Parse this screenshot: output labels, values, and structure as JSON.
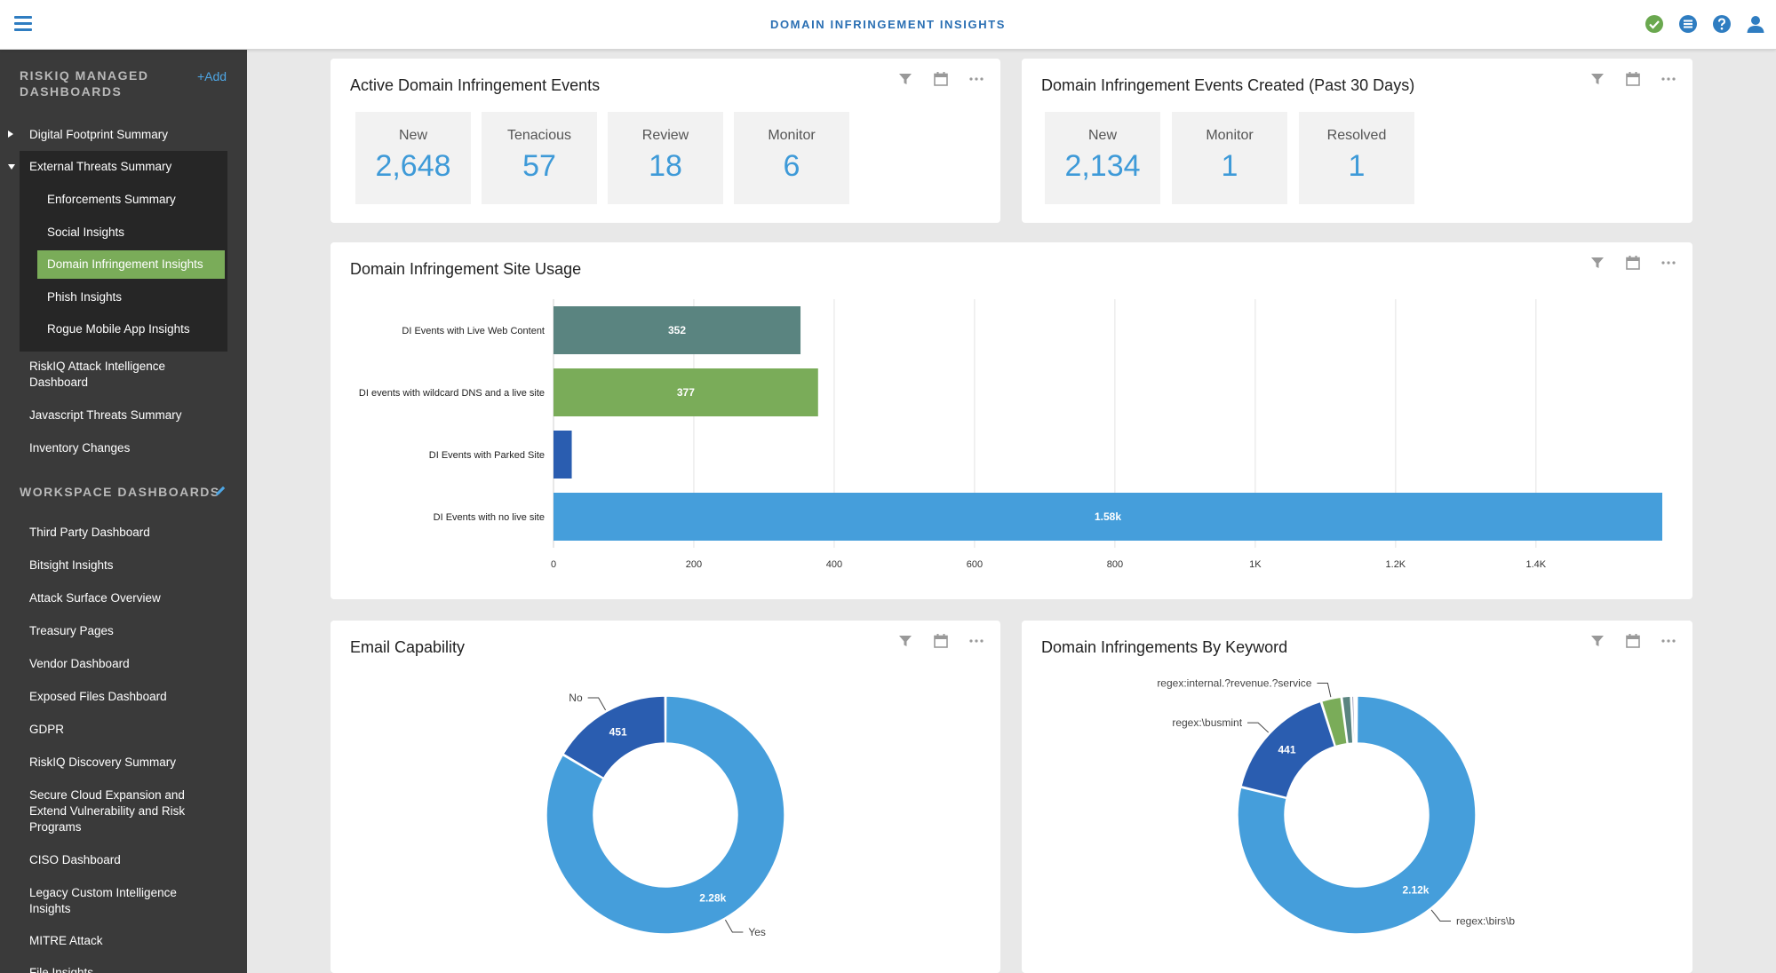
{
  "app": {
    "title": "DOMAIN INFRINGEMENT INSIGHTS"
  },
  "top_icons": [
    "check-circle-icon",
    "list-icon",
    "help-icon",
    "user-icon"
  ],
  "sidebar": {
    "managed_title": "RISKIQ MANAGED DASHBOARDS",
    "add_label": "+Add",
    "workspace_title": "WORKSPACE DASHBOARDS",
    "managed_items": [
      {
        "label": "Digital Footprint Summary"
      },
      {
        "label": "External Threats Summary"
      },
      {
        "label": "Enforcements Summary"
      },
      {
        "label": "Social Insights"
      },
      {
        "label": "Domain Infringement Insights"
      },
      {
        "label": "Phish Insights"
      },
      {
        "label": "Rogue Mobile App Insights"
      },
      {
        "label": "RiskIQ Attack Intelligence Dashboard"
      },
      {
        "label": "Javascript Threats Summary"
      },
      {
        "label": "Inventory Changes"
      }
    ],
    "workspace_items": [
      {
        "label": "Third Party Dashboard"
      },
      {
        "label": "Bitsight Insights"
      },
      {
        "label": "Attack Surface Overview"
      },
      {
        "label": "Treasury Pages"
      },
      {
        "label": "Vendor Dashboard"
      },
      {
        "label": "Exposed Files Dashboard"
      },
      {
        "label": "GDPR"
      },
      {
        "label": "RiskIQ Discovery Summary"
      },
      {
        "label": "Secure Cloud Expansion and Extend Vulnerability and Risk Programs"
      },
      {
        "label": "CISO Dashboard"
      },
      {
        "label": "Legacy Custom Intelligence Insights"
      },
      {
        "label": "MITRE Attack"
      },
      {
        "label": "File Insights"
      }
    ]
  },
  "cards": {
    "active_events": {
      "title": "Active Domain Infringement Events",
      "stats": [
        {
          "label": "New",
          "value": "2,648"
        },
        {
          "label": "Tenacious",
          "value": "57"
        },
        {
          "label": "Review",
          "value": "18"
        },
        {
          "label": "Monitor",
          "value": "6"
        }
      ]
    },
    "created_events": {
      "title": "Domain Infringement Events Created (Past 30 Days)",
      "stats": [
        {
          "label": "New",
          "value": "2,134"
        },
        {
          "label": "Monitor",
          "value": "1"
        },
        {
          "label": "Resolved",
          "value": "1"
        }
      ]
    },
    "site_usage": {
      "title": "Domain Infringement Site Usage"
    },
    "email": {
      "title": "Email Capability"
    },
    "keyword": {
      "title": "Domain Infringements By Keyword"
    }
  },
  "chart_data": [
    {
      "type": "bar",
      "orientation": "horizontal",
      "categories": [
        "DI Events with Live Web Content",
        "DI events with wildcard DNS and a live site",
        "DI Events with Parked Site",
        "DI Events with no live site"
      ],
      "values": [
        352,
        377,
        26,
        1580
      ],
      "data_labels": [
        "352",
        "377",
        "",
        "1.58k"
      ],
      "colors": [
        "#5a8480",
        "#7aac59",
        "#2a5db0",
        "#459edb"
      ],
      "xlim": [
        0,
        1580
      ],
      "x_ticks": [
        0,
        200,
        400,
        600,
        800,
        1000,
        1200,
        1400
      ],
      "x_tick_labels": [
        "0",
        "200",
        "400",
        "600",
        "800",
        "1K",
        "1.2K",
        "1.4K"
      ],
      "grid": true
    },
    {
      "type": "pie",
      "donut": true,
      "labels": [
        "No",
        "Yes"
      ],
      "values": [
        451,
        2280
      ],
      "data_labels": [
        "451",
        "2.28k"
      ],
      "colors": [
        "#2a5db0",
        "#459edb"
      ]
    },
    {
      "type": "pie",
      "donut": true,
      "labels": [
        "regex:\\birs\\b",
        "regex:\\busmint",
        "regex:internal.?revenue.?service",
        "",
        "",
        ""
      ],
      "values": [
        2120,
        441,
        75,
        35,
        12,
        8
      ],
      "data_labels": [
        "2.12k",
        "441",
        "",
        "",
        "",
        ""
      ],
      "colors": [
        "#459edb",
        "#2a5db0",
        "#7aac59",
        "#5a8480",
        "#8a8fb0",
        "#c080a0"
      ]
    }
  ]
}
